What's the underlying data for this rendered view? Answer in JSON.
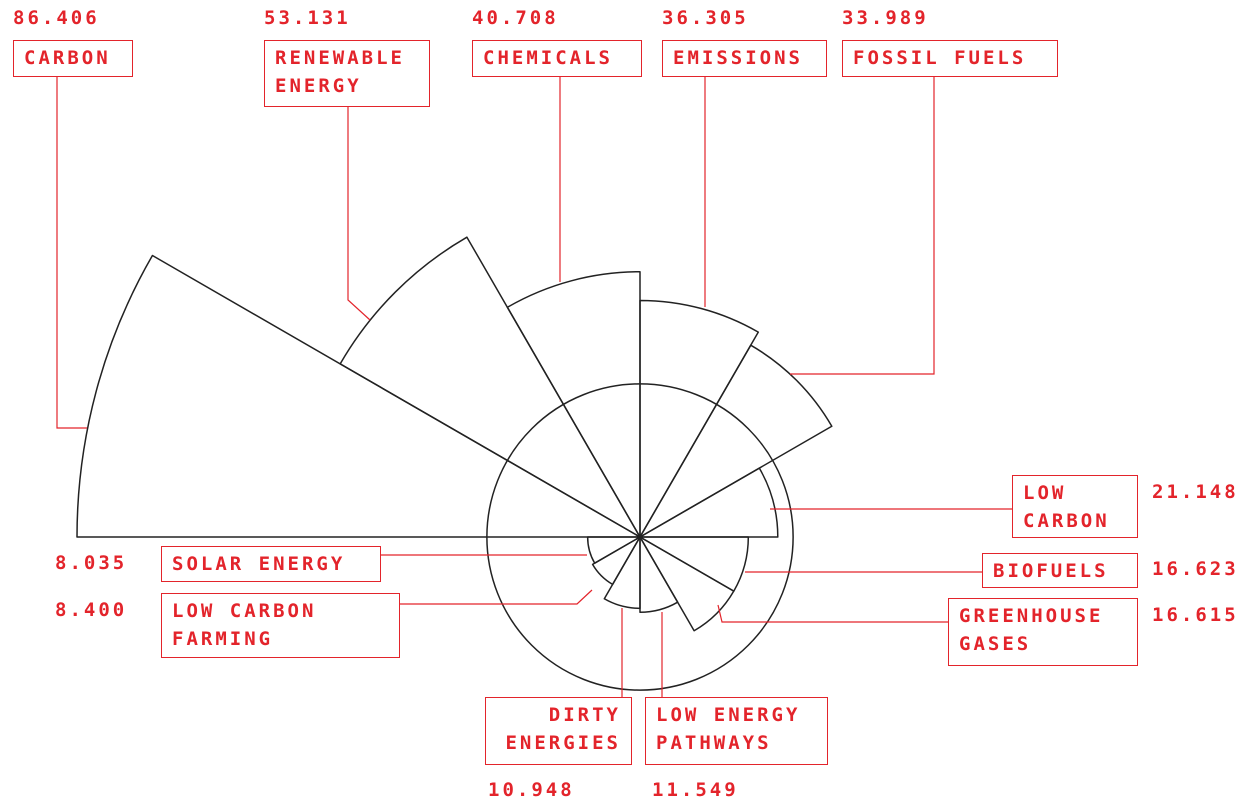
{
  "chart_data": {
    "type": "polar_area",
    "categories": [
      "CARBON",
      "RENEWABLE ENERGY",
      "CHEMICALS",
      "EMISSIONS",
      "FOSSIL FUELS",
      "LOW CARBON",
      "BIOFUELS",
      "GREENHOUSE GASES",
      "LOW ENERGY PATHWAYS",
      "DIRTY ENERGIES",
      "LOW CARBON FARMING",
      "SOLAR ENERGY"
    ],
    "values": [
      86.406,
      53.131,
      40.708,
      36.305,
      33.989,
      21.148,
      16.623,
      16.615,
      11.549,
      10.948,
      8.4,
      8.035
    ],
    "value_labels": [
      "86.406",
      "53.131",
      "40.708",
      "36.305",
      "33.989",
      "21.148",
      "16.623",
      "16.615",
      "11.549",
      "10.948",
      "8.400",
      "8.035"
    ],
    "reference_circle": 23.5,
    "color": "#e3242b"
  }
}
